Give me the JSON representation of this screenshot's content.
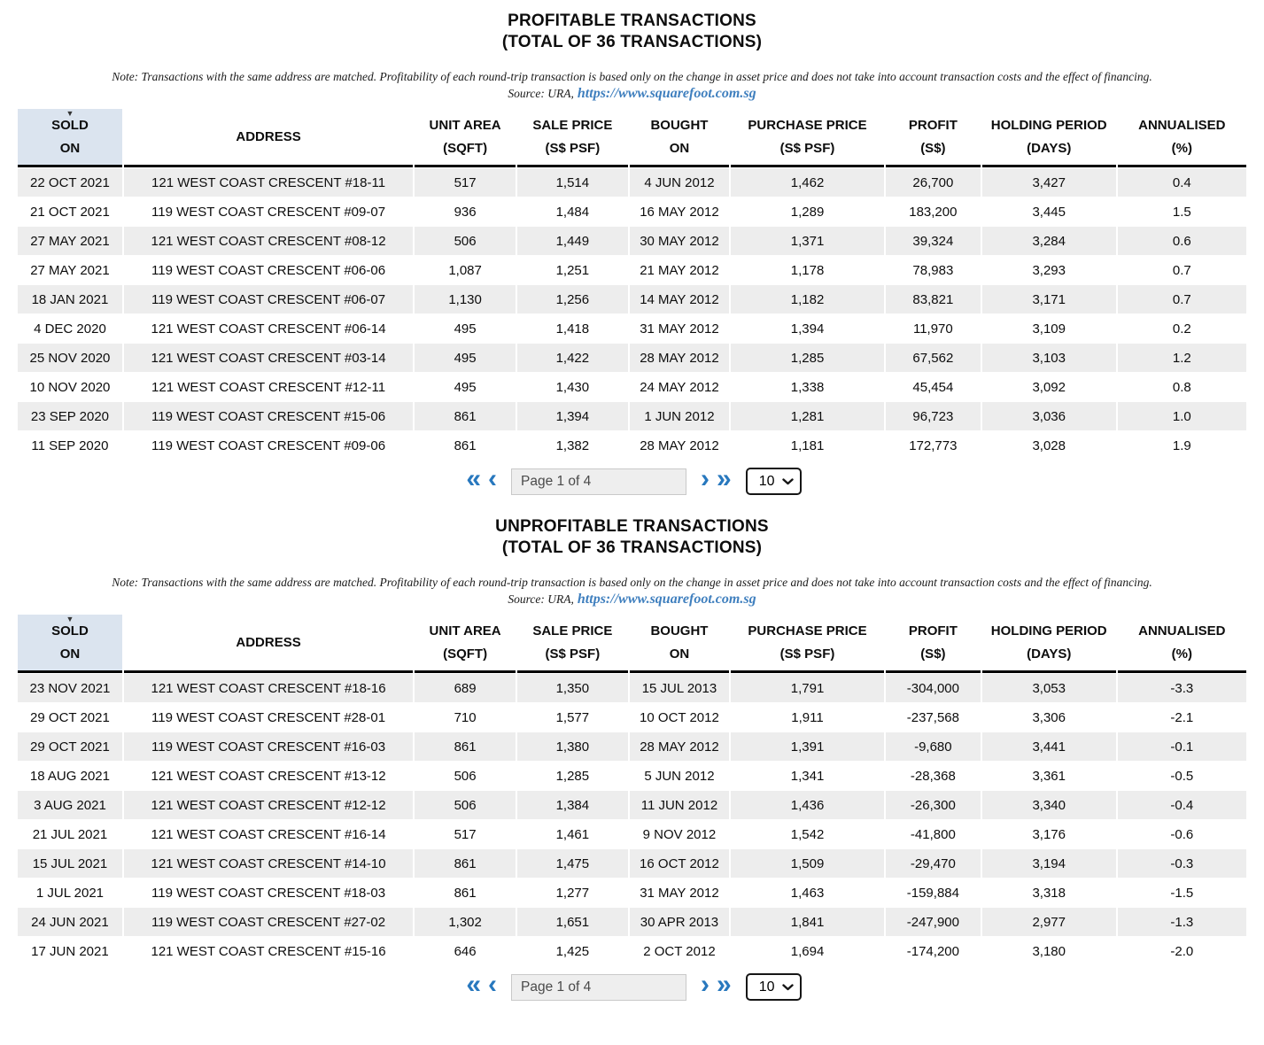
{
  "colors": {
    "accent_blue": "#2878be",
    "link_blue": "#3f7fbe",
    "header_highlight": "#dbe4ef",
    "row_stripe": "#ededed"
  },
  "icons": {
    "sort_desc": "▼",
    "first_page": "«",
    "prev_page": "‹",
    "next_page": "›",
    "last_page": "»",
    "select_chevron": "chevron-down"
  },
  "sections": [
    {
      "title_line1": "PROFITABLE TRANSACTIONS",
      "title_line2": "(TOTAL OF 36 TRANSACTIONS)",
      "note": "Note: Transactions with the same address are matched. Profitability of each round-trip transaction is based only on the change in asset price and does not take into account transaction costs and the effect of financing.",
      "source_prefix": "Source: URA,",
      "source_link": "https://www.squarefoot.com.sg",
      "columns": [
        {
          "id": "sold-on",
          "line1": "SOLD",
          "line2": "ON",
          "sorted": true
        },
        {
          "id": "address",
          "line1": "ADDRESS",
          "line2": ""
        },
        {
          "id": "unit-area",
          "line1": "UNIT AREA",
          "line2": "(SQFT)"
        },
        {
          "id": "sale-price",
          "line1": "SALE PRICE",
          "line2": "(S$ PSF)"
        },
        {
          "id": "bought-on",
          "line1": "BOUGHT",
          "line2": "ON"
        },
        {
          "id": "purchase-price",
          "line1": "PURCHASE PRICE",
          "line2": "(S$ PSF)"
        },
        {
          "id": "profit",
          "line1": "PROFIT",
          "line2": "(S$)"
        },
        {
          "id": "holding-period",
          "line1": "HOLDING PERIOD",
          "line2": "(DAYS)"
        },
        {
          "id": "annualised",
          "line1": "ANNUALISED",
          "line2": "(%)"
        }
      ],
      "rows": [
        [
          "22 OCT 2021",
          "121 WEST COAST CRESCENT #18-11",
          "517",
          "1,514",
          "4 JUN 2012",
          "1,462",
          "26,700",
          "3,427",
          "0.4"
        ],
        [
          "21 OCT 2021",
          "119 WEST COAST CRESCENT #09-07",
          "936",
          "1,484",
          "16 MAY 2012",
          "1,289",
          "183,200",
          "3,445",
          "1.5"
        ],
        [
          "27 MAY 2021",
          "121 WEST COAST CRESCENT #08-12",
          "506",
          "1,449",
          "30 MAY 2012",
          "1,371",
          "39,324",
          "3,284",
          "0.6"
        ],
        [
          "27 MAY 2021",
          "119 WEST COAST CRESCENT #06-06",
          "1,087",
          "1,251",
          "21 MAY 2012",
          "1,178",
          "78,983",
          "3,293",
          "0.7"
        ],
        [
          "18 JAN 2021",
          "119 WEST COAST CRESCENT #06-07",
          "1,130",
          "1,256",
          "14 MAY 2012",
          "1,182",
          "83,821",
          "3,171",
          "0.7"
        ],
        [
          "4 DEC 2020",
          "121 WEST COAST CRESCENT #06-14",
          "495",
          "1,418",
          "31 MAY 2012",
          "1,394",
          "11,970",
          "3,109",
          "0.2"
        ],
        [
          "25 NOV 2020",
          "121 WEST COAST CRESCENT #03-14",
          "495",
          "1,422",
          "28 MAY 2012",
          "1,285",
          "67,562",
          "3,103",
          "1.2"
        ],
        [
          "10 NOV 2020",
          "121 WEST COAST CRESCENT #12-11",
          "495",
          "1,430",
          "24 MAY 2012",
          "1,338",
          "45,454",
          "3,092",
          "0.8"
        ],
        [
          "23 SEP 2020",
          "119 WEST COAST CRESCENT #15-06",
          "861",
          "1,394",
          "1 JUN 2012",
          "1,281",
          "96,723",
          "3,036",
          "1.0"
        ],
        [
          "11 SEP 2020",
          "119 WEST COAST CRESCENT #09-06",
          "861",
          "1,382",
          "28 MAY 2012",
          "1,181",
          "172,773",
          "3,028",
          "1.9"
        ]
      ],
      "pagination": {
        "page_label": "Page 1 of 4",
        "page_size": "10"
      }
    },
    {
      "title_line1": "UNPROFITABLE TRANSACTIONS",
      "title_line2": "(TOTAL OF 36 TRANSACTIONS)",
      "note": "Note: Transactions with the same address are matched. Profitability of each round-trip transaction is based only on the change in asset price and does not take into account transaction costs and the effect of financing.",
      "source_prefix": "Source: URA,",
      "source_link": "https://www.squarefoot.com.sg",
      "columns": [
        {
          "id": "sold-on",
          "line1": "SOLD",
          "line2": "ON",
          "sorted": true
        },
        {
          "id": "address",
          "line1": "ADDRESS",
          "line2": ""
        },
        {
          "id": "unit-area",
          "line1": "UNIT AREA",
          "line2": "(SQFT)"
        },
        {
          "id": "sale-price",
          "line1": "SALE PRICE",
          "line2": "(S$ PSF)"
        },
        {
          "id": "bought-on",
          "line1": "BOUGHT",
          "line2": "ON"
        },
        {
          "id": "purchase-price",
          "line1": "PURCHASE PRICE",
          "line2": "(S$ PSF)"
        },
        {
          "id": "profit",
          "line1": "PROFIT",
          "line2": "(S$)"
        },
        {
          "id": "holding-period",
          "line1": "HOLDING PERIOD",
          "line2": "(DAYS)"
        },
        {
          "id": "annualised",
          "line1": "ANNUALISED",
          "line2": "(%)"
        }
      ],
      "rows": [
        [
          "23 NOV 2021",
          "121 WEST COAST CRESCENT #18-16",
          "689",
          "1,350",
          "15 JUL 2013",
          "1,791",
          "-304,000",
          "3,053",
          "-3.3"
        ],
        [
          "29 OCT 2021",
          "119 WEST COAST CRESCENT #28-01",
          "710",
          "1,577",
          "10 OCT 2012",
          "1,911",
          "-237,568",
          "3,306",
          "-2.1"
        ],
        [
          "29 OCT 2021",
          "119 WEST COAST CRESCENT #16-03",
          "861",
          "1,380",
          "28 MAY 2012",
          "1,391",
          "-9,680",
          "3,441",
          "-0.1"
        ],
        [
          "18 AUG 2021",
          "121 WEST COAST CRESCENT #13-12",
          "506",
          "1,285",
          "5 JUN 2012",
          "1,341",
          "-28,368",
          "3,361",
          "-0.5"
        ],
        [
          "3 AUG 2021",
          "121 WEST COAST CRESCENT #12-12",
          "506",
          "1,384",
          "11 JUN 2012",
          "1,436",
          "-26,300",
          "3,340",
          "-0.4"
        ],
        [
          "21 JUL 2021",
          "121 WEST COAST CRESCENT #16-14",
          "517",
          "1,461",
          "9 NOV 2012",
          "1,542",
          "-41,800",
          "3,176",
          "-0.6"
        ],
        [
          "15 JUL 2021",
          "121 WEST COAST CRESCENT #14-10",
          "861",
          "1,475",
          "16 OCT 2012",
          "1,509",
          "-29,470",
          "3,194",
          "-0.3"
        ],
        [
          "1 JUL 2021",
          "119 WEST COAST CRESCENT #18-03",
          "861",
          "1,277",
          "31 MAY 2012",
          "1,463",
          "-159,884",
          "3,318",
          "-1.5"
        ],
        [
          "24 JUN 2021",
          "119 WEST COAST CRESCENT #27-02",
          "1,302",
          "1,651",
          "30 APR 2013",
          "1,841",
          "-247,900",
          "2,977",
          "-1.3"
        ],
        [
          "17 JUN 2021",
          "121 WEST COAST CRESCENT #15-16",
          "646",
          "1,425",
          "2 OCT 2012",
          "1,694",
          "-174,200",
          "3,180",
          "-2.0"
        ]
      ],
      "pagination": {
        "page_label": "Page 1 of 4",
        "page_size": "10"
      }
    }
  ]
}
